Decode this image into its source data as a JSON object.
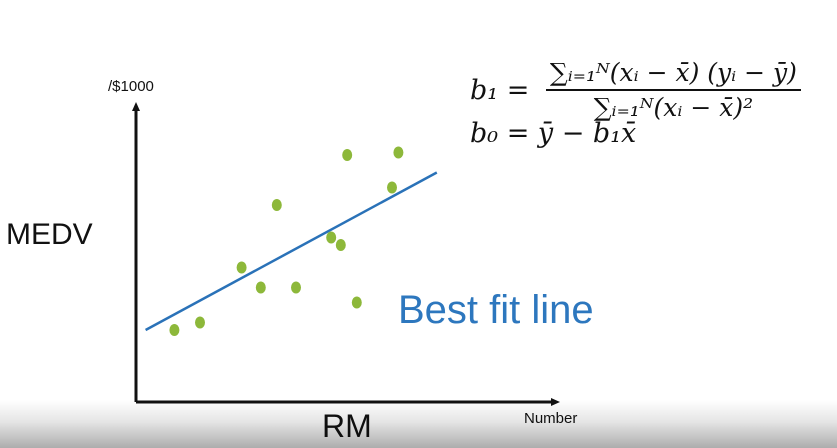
{
  "chart_data": {
    "type": "scatter",
    "title": "",
    "xlabel": "RM",
    "xlabel_unit": "Number",
    "ylabel": "MEDV",
    "ylabel_unit": "/$1000",
    "grid": false,
    "legend": "none",
    "xlim": [
      0,
      10
    ],
    "ylim": [
      0,
      10
    ],
    "points": [
      {
        "x": 1.2,
        "y": 2.0
      },
      {
        "x": 2.0,
        "y": 2.3
      },
      {
        "x": 3.3,
        "y": 4.5
      },
      {
        "x": 3.9,
        "y": 3.7
      },
      {
        "x": 4.4,
        "y": 7.0
      },
      {
        "x": 5.0,
        "y": 3.7
      },
      {
        "x": 6.1,
        "y": 5.7
      },
      {
        "x": 6.4,
        "y": 5.4
      },
      {
        "x": 6.6,
        "y": 9.0
      },
      {
        "x": 6.9,
        "y": 3.1
      },
      {
        "x": 8.0,
        "y": 7.7
      },
      {
        "x": 8.2,
        "y": 9.1
      }
    ],
    "fit_line": {
      "x": [
        0.3,
        9.4
      ],
      "y": [
        2.0,
        8.3
      ]
    },
    "annotation": "Best fit line",
    "colors": {
      "points": "#8db83a",
      "line": "#2a72b8",
      "annotation": "#2d77be"
    }
  },
  "formula": {
    "b1_lhs": "b₁ =",
    "b1_numerator": "∑ᵢ₌₁ᴺ(xᵢ − x̄) (yᵢ − ȳ)",
    "b1_denominator": "∑ᵢ₌₁ᴺ(xᵢ − x̄)²",
    "b0": "b₀ =  ȳ  − b₁x̄"
  }
}
